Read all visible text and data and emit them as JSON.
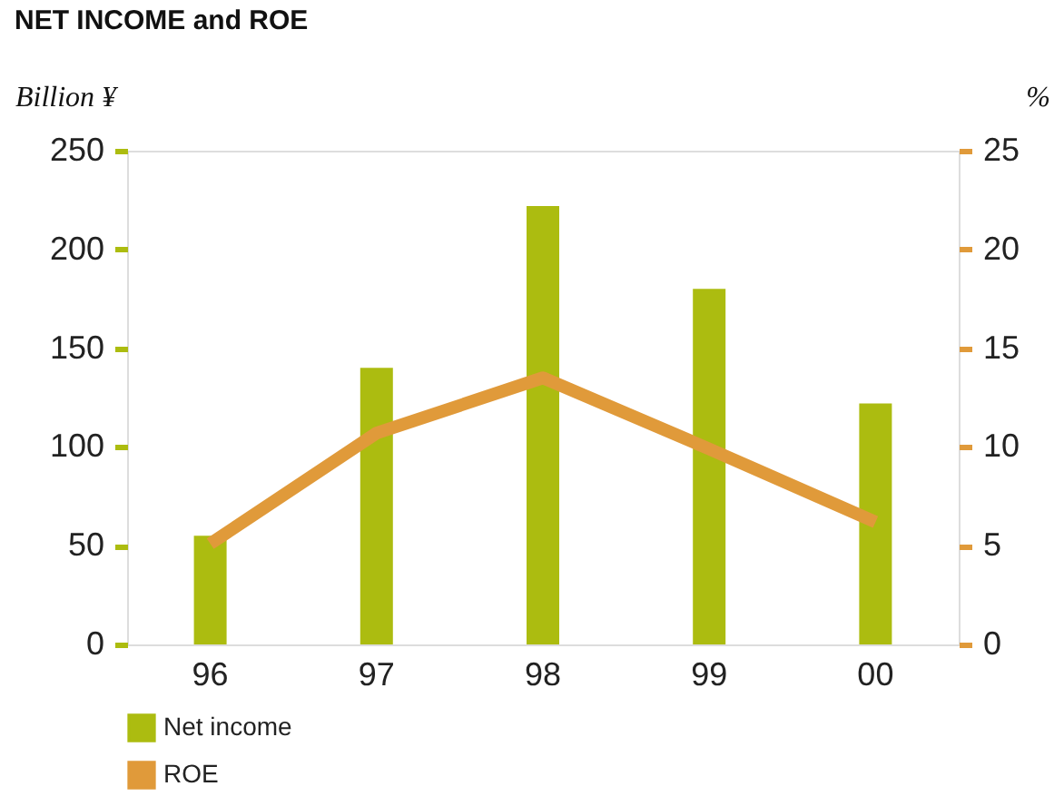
{
  "chart_data": {
    "type": "bar",
    "title": "NET INCOME and ROE",
    "ylabel": "Billion ¥",
    "y2label": "%",
    "categories": [
      "96",
      "97",
      "98",
      "99",
      "00"
    ],
    "series": [
      {
        "name": "Net income",
        "color": "#acbc10",
        "values": [
          55,
          140,
          222,
          180,
          122
        ]
      },
      {
        "name": "ROE",
        "type": "line",
        "axis": "y2",
        "color": "#e09a3a",
        "values": [
          5.1,
          10.7,
          13.5,
          9.9,
          6.2
        ]
      }
    ],
    "ylim": [
      0,
      250
    ],
    "yticks": [
      0,
      50,
      100,
      150,
      200,
      250
    ],
    "y2lim": [
      0,
      25
    ],
    "y2ticks": [
      0,
      5,
      10,
      15,
      20,
      25
    ],
    "grid": false,
    "legend": "bottom left",
    "marker": "none",
    "line_style": "solid"
  }
}
